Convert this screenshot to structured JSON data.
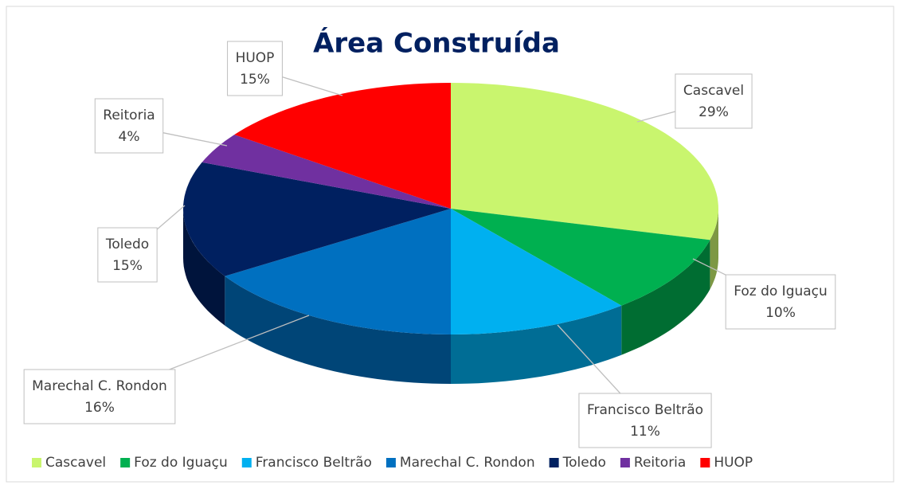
{
  "chart_data": {
    "type": "pie",
    "title": "Área Construída",
    "categories": [
      "Cascavel",
      "Foz do Iguaçu",
      "Francisco Beltrão",
      "Marechal C. Rondon",
      "Toledo",
      "Reitoria",
      "HUOP"
    ],
    "values": [
      29,
      10,
      11,
      16,
      15,
      4,
      15
    ],
    "value_labels": [
      "29%",
      "10%",
      "11%",
      "16%",
      "15%",
      "4%",
      "15%"
    ],
    "colors": [
      "#c9f56e",
      "#00b050",
      "#00b0f0",
      "#0070c0",
      "#002060",
      "#7030a0",
      "#ff0000"
    ],
    "legend": "bottom"
  }
}
